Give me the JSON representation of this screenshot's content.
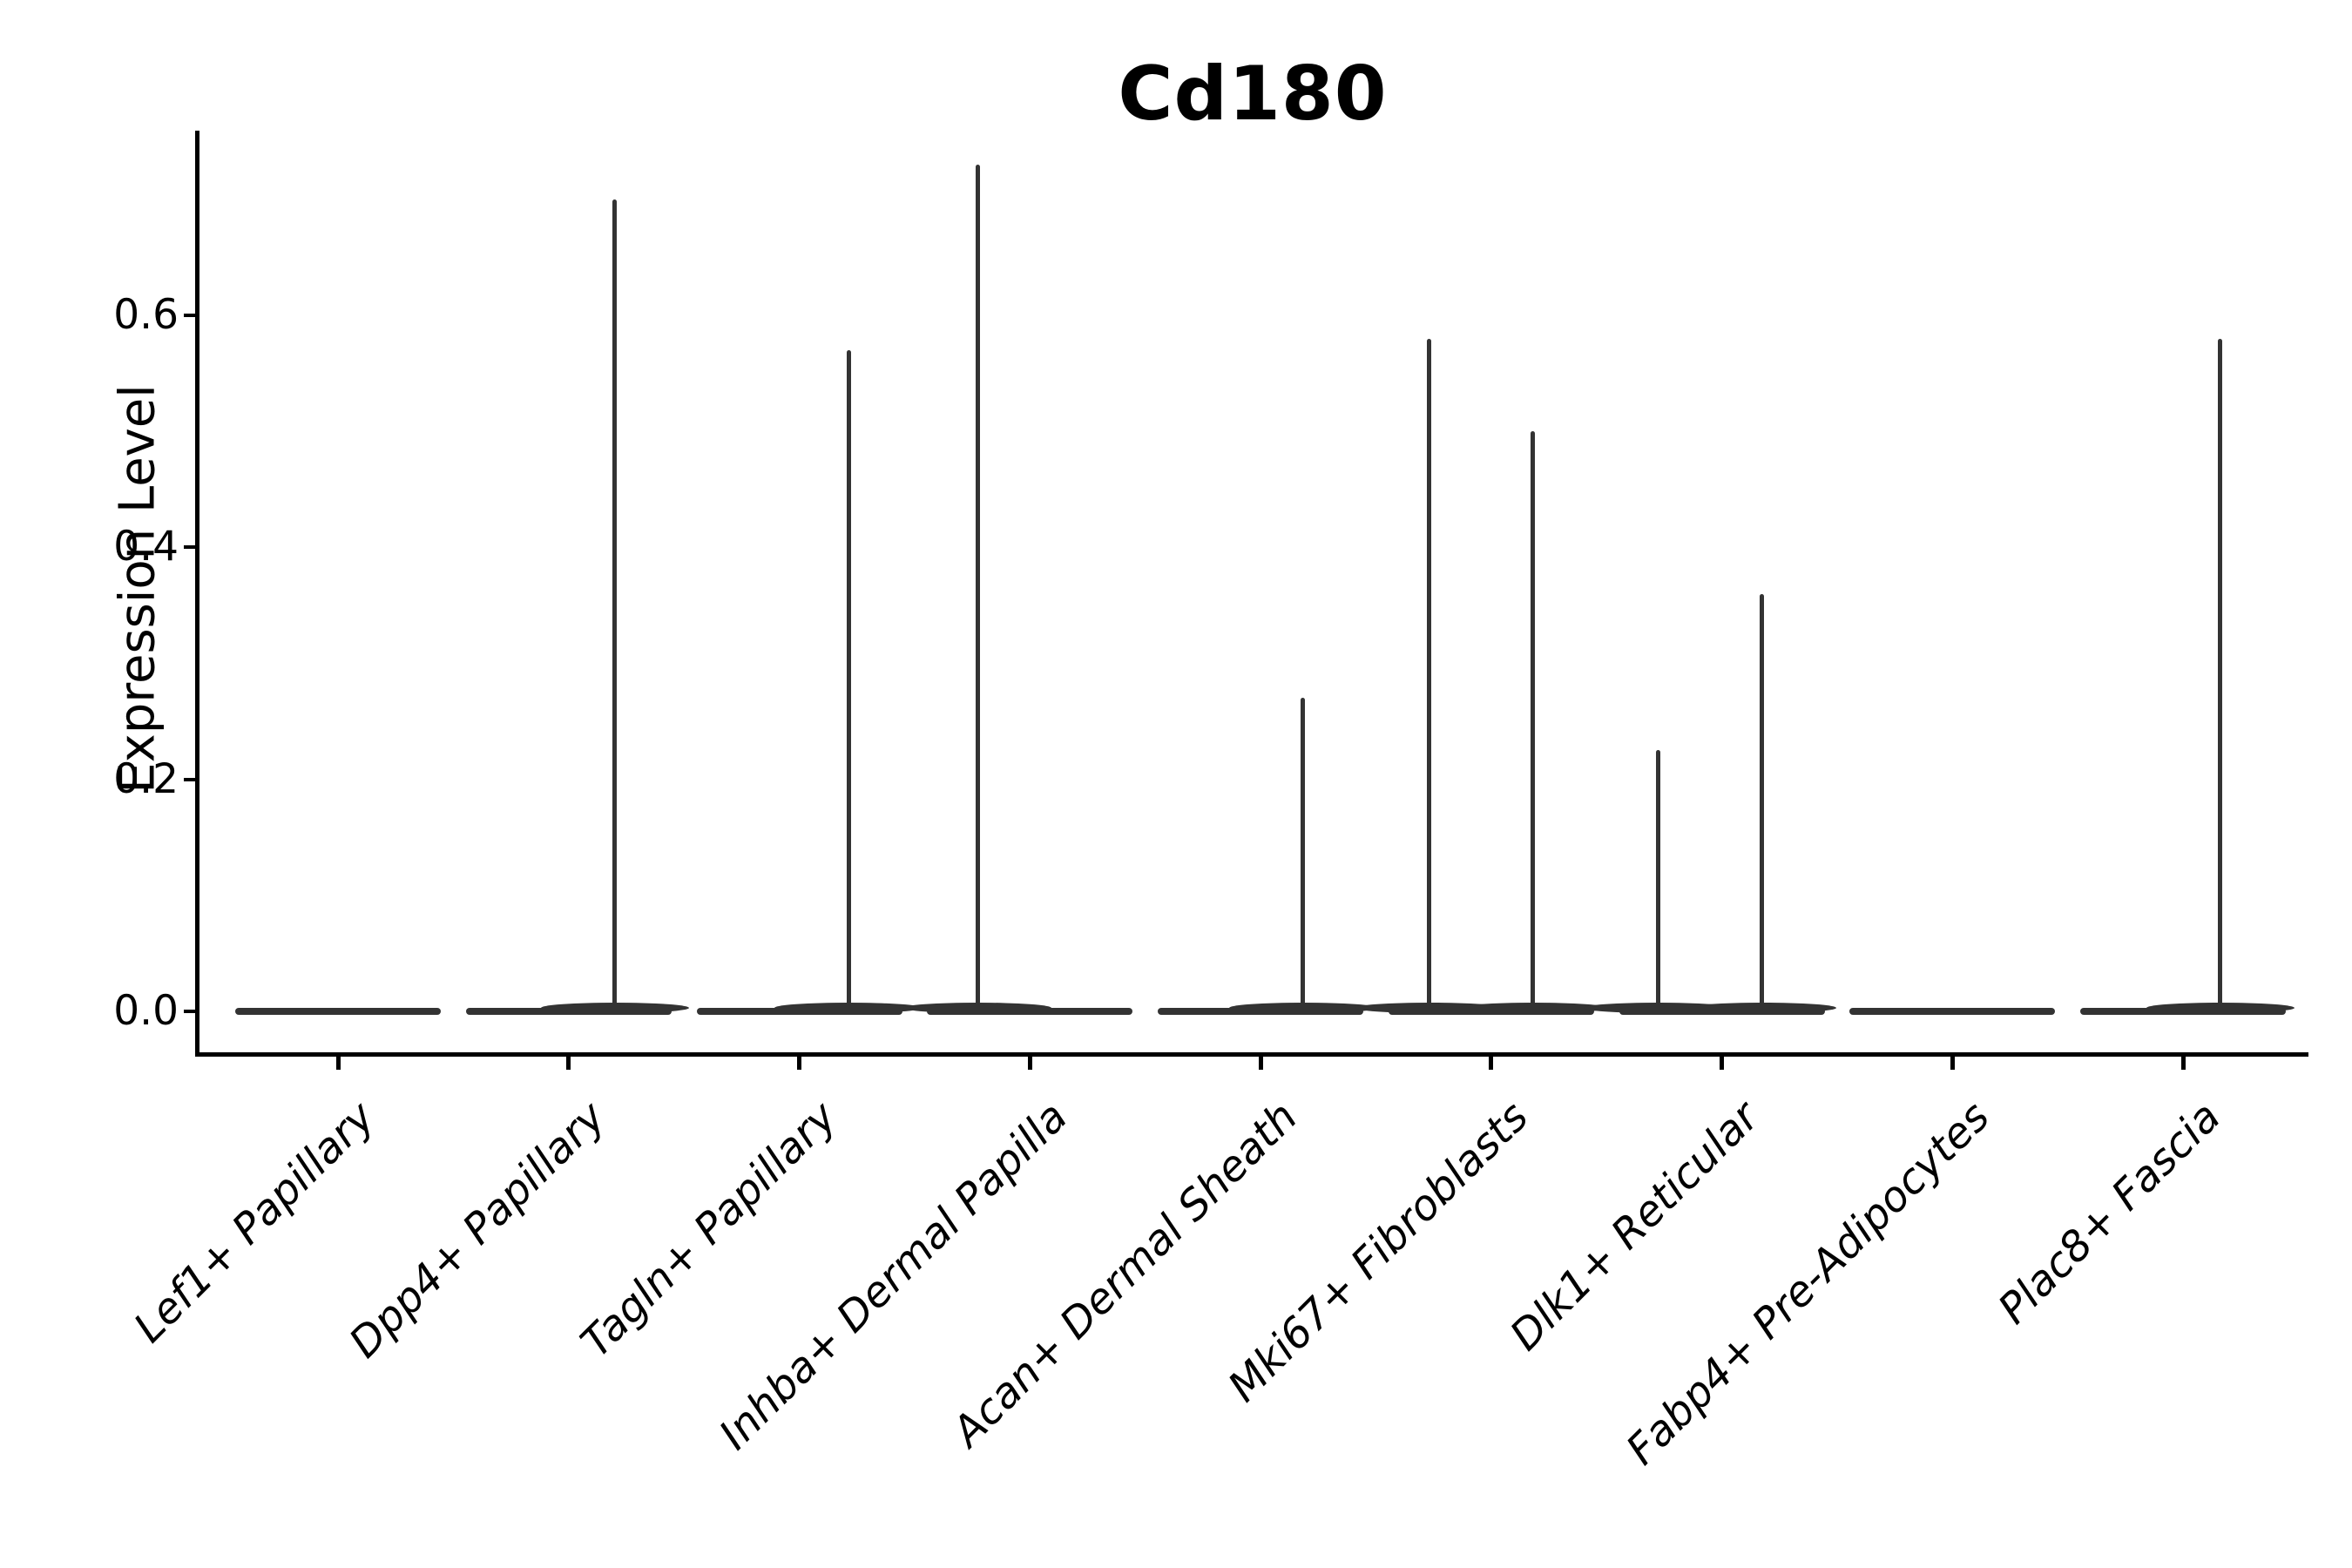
{
  "page": {
    "background": "#ffffff"
  },
  "chart_data": {
    "type": "violin",
    "title": "Cd180",
    "xlabel": "",
    "ylabel": "Expression Level",
    "categories": [
      "Lef1+ Papillary",
      "Dpp4+ Papillary",
      "Tagln+ Papillary",
      "Inhba+ Dermal Papilla",
      "Acan+ Dermal Sheath",
      "Mki67+ Fibroblasts",
      "Dlk1+ Reticular",
      "Fabp4+ Pre-Adipocytes",
      "Plac8+ Fascia"
    ],
    "y_ticks": [
      0.0,
      0.2,
      0.4,
      0.6
    ],
    "ylim": [
      -0.04,
      0.77
    ],
    "grid": false,
    "legend_position": "none",
    "violin_color": "#333333",
    "axis_color": "#000000",
    "violins": [
      {
        "category": "Lef1+ Papillary",
        "bulk_value": 0.0,
        "spikes": []
      },
      {
        "category": "Dpp4+ Papillary",
        "bulk_value": 0.0,
        "spikes": [
          {
            "offset_frac": 0.2,
            "max": 0.7
          }
        ]
      },
      {
        "category": "Tagln+ Papillary",
        "bulk_value": 0.0,
        "spikes": [
          {
            "offset_frac": 0.215,
            "max": 0.57
          }
        ]
      },
      {
        "category": "Inhba+ Dermal Papilla",
        "bulk_value": 0.0,
        "spikes": [
          {
            "offset_frac": -0.227,
            "max": 0.73
          }
        ]
      },
      {
        "category": "Acan+ Dermal Sheath",
        "bulk_value": 0.0,
        "spikes": [
          {
            "offset_frac": 0.185,
            "max": 0.27
          }
        ]
      },
      {
        "category": "Mki67+ Fibroblasts",
        "bulk_value": 0.0,
        "spikes": [
          {
            "offset_frac": -0.268,
            "max": 0.58
          },
          {
            "offset_frac": 0.181,
            "max": 0.5
          }
        ]
      },
      {
        "category": "Dlk1+ Reticular",
        "bulk_value": 0.0,
        "spikes": [
          {
            "offset_frac": -0.276,
            "max": 0.225
          },
          {
            "offset_frac": 0.174,
            "max": 0.36
          }
        ]
      },
      {
        "category": "Fabp4+ Pre-Adipocytes",
        "bulk_value": 0.0,
        "spikes": []
      },
      {
        "category": "Plac8+ Fascia",
        "bulk_value": 0.0,
        "spikes": [
          {
            "offset_frac": 0.162,
            "max": 0.58
          }
        ]
      }
    ]
  }
}
